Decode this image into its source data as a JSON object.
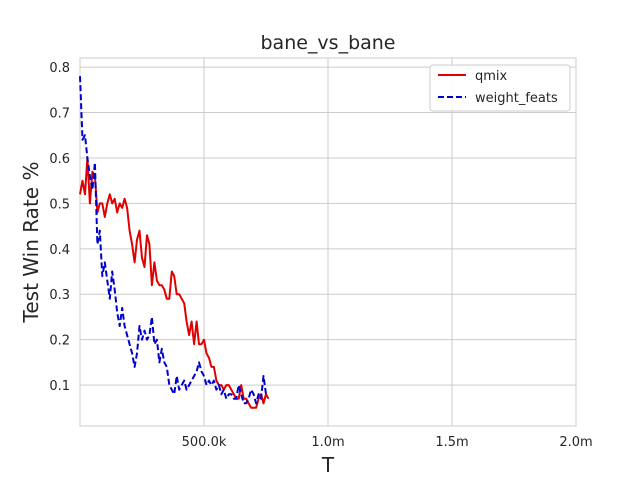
{
  "chart_data": {
    "type": "line",
    "title": "bane_vs_bane",
    "xlabel": "T",
    "ylabel": "Test Win Rate %",
    "xlim": [
      0,
      2000000
    ],
    "ylim": [
      0.01,
      0.82
    ],
    "xticks": [
      500000,
      1000000,
      1500000,
      2000000
    ],
    "xtick_labels": [
      "500.0k",
      "1.0m",
      "1.5m",
      "2.0m"
    ],
    "yticks": [
      0.1,
      0.2,
      0.3,
      0.4,
      0.5,
      0.6,
      0.7,
      0.8
    ],
    "ytick_labels": [
      "0.1",
      "0.2",
      "0.3",
      "0.4",
      "0.5",
      "0.6",
      "0.7",
      "0.8"
    ],
    "grid": true,
    "legend_position": "top-right",
    "series": [
      {
        "name": "qmix",
        "color": "#e00000",
        "line_style": "solid",
        "x": [
          0,
          10000,
          20000,
          30000,
          40000,
          50000,
          60000,
          70000,
          80000,
          90000,
          100000,
          110000,
          120000,
          130000,
          140000,
          150000,
          160000,
          170000,
          180000,
          190000,
          200000,
          210000,
          220000,
          230000,
          240000,
          250000,
          260000,
          270000,
          280000,
          290000,
          300000,
          310000,
          320000,
          330000,
          340000,
          350000,
          360000,
          370000,
          380000,
          390000,
          400000,
          410000,
          420000,
          430000,
          440000,
          450000,
          460000,
          470000,
          480000,
          490000,
          500000,
          510000,
          520000,
          530000,
          540000,
          550000,
          560000,
          570000,
          580000,
          590000,
          600000,
          610000,
          620000,
          630000,
          640000,
          650000,
          660000,
          670000,
          680000,
          690000,
          700000,
          710000,
          720000,
          730000,
          740000,
          750000,
          760000
        ],
        "y": [
          0.52,
          0.55,
          0.52,
          0.6,
          0.5,
          0.57,
          0.56,
          0.48,
          0.5,
          0.5,
          0.47,
          0.5,
          0.52,
          0.5,
          0.51,
          0.48,
          0.5,
          0.49,
          0.51,
          0.49,
          0.44,
          0.41,
          0.37,
          0.42,
          0.44,
          0.38,
          0.36,
          0.43,
          0.41,
          0.32,
          0.37,
          0.33,
          0.32,
          0.32,
          0.31,
          0.29,
          0.29,
          0.35,
          0.34,
          0.3,
          0.3,
          0.29,
          0.28,
          0.24,
          0.21,
          0.24,
          0.19,
          0.24,
          0.19,
          0.19,
          0.2,
          0.17,
          0.16,
          0.14,
          0.14,
          0.11,
          0.1,
          0.1,
          0.09,
          0.1,
          0.1,
          0.09,
          0.08,
          0.07,
          0.07,
          0.1,
          0.07,
          0.07,
          0.06,
          0.05,
          0.05,
          0.05,
          0.07,
          0.08,
          0.06,
          0.08,
          0.07
        ]
      },
      {
        "name": "weight_feats",
        "color": "#0000cc",
        "line_style": "dashed",
        "x": [
          0,
          10000,
          20000,
          30000,
          40000,
          50000,
          60000,
          70000,
          80000,
          90000,
          100000,
          110000,
          120000,
          130000,
          140000,
          150000,
          160000,
          170000,
          180000,
          190000,
          200000,
          210000,
          220000,
          230000,
          240000,
          250000,
          260000,
          270000,
          280000,
          290000,
          300000,
          310000,
          320000,
          330000,
          340000,
          350000,
          360000,
          370000,
          380000,
          390000,
          400000,
          410000,
          420000,
          430000,
          440000,
          450000,
          460000,
          470000,
          480000,
          490000,
          500000,
          510000,
          520000,
          530000,
          540000,
          550000,
          560000,
          570000,
          580000,
          590000,
          600000,
          610000,
          620000,
          630000,
          640000,
          650000,
          660000,
          670000,
          680000,
          690000,
          700000,
          710000,
          720000,
          730000,
          740000,
          750000,
          760000
        ],
        "y": [
          0.78,
          0.64,
          0.65,
          0.6,
          0.56,
          0.53,
          0.59,
          0.41,
          0.44,
          0.34,
          0.37,
          0.33,
          0.29,
          0.35,
          0.31,
          0.26,
          0.23,
          0.27,
          0.23,
          0.21,
          0.19,
          0.17,
          0.14,
          0.17,
          0.23,
          0.2,
          0.22,
          0.2,
          0.21,
          0.25,
          0.19,
          0.2,
          0.15,
          0.18,
          0.15,
          0.14,
          0.1,
          0.09,
          0.08,
          0.12,
          0.09,
          0.1,
          0.11,
          0.09,
          0.1,
          0.11,
          0.12,
          0.13,
          0.15,
          0.13,
          0.12,
          0.1,
          0.11,
          0.1,
          0.11,
          0.09,
          0.1,
          0.08,
          0.09,
          0.07,
          0.08,
          0.08,
          0.07,
          0.07,
          0.1,
          0.08,
          0.06,
          0.06,
          0.07,
          0.09,
          0.08,
          0.06,
          0.08,
          0.07,
          0.12,
          0.08,
          0.08
        ]
      }
    ]
  }
}
